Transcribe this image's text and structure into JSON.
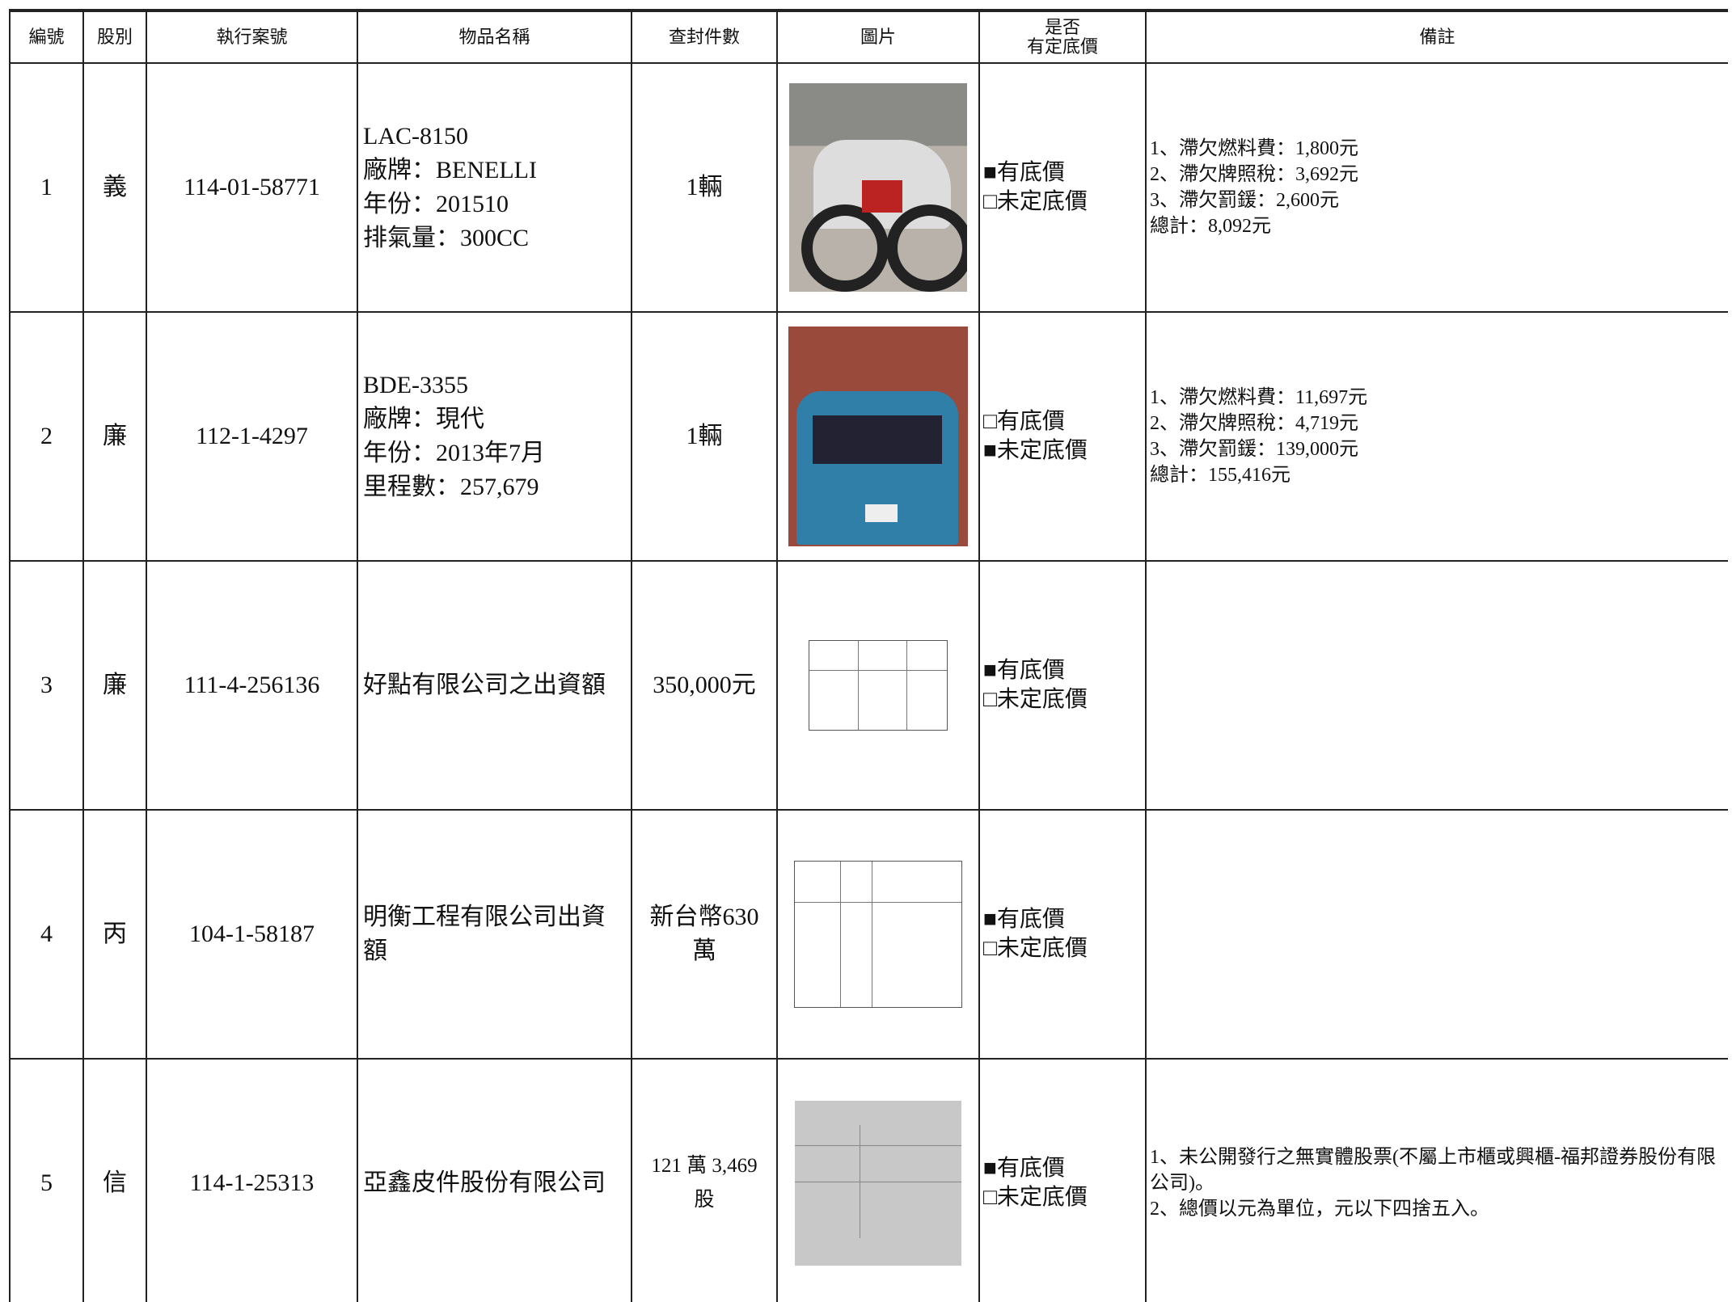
{
  "table": {
    "header": [
      "編號",
      "股別",
      "執行案號",
      "物品名稱",
      "查封件數",
      "圖片",
      [
        "是否",
        "有定底價"
      ],
      "備註"
    ],
    "rows": [
      {
        "no": "1",
        "division": "義",
        "case": "114-01-58771",
        "item": [
          "LAC-8150",
          "廠牌：BENELLI",
          "年份：201510",
          "排氣量：300CC"
        ],
        "quantity": "1輛",
        "reserve": [
          "■有底價",
          "□未定底價"
        ],
        "remarks": [
          "1、滯欠燃料費：1,800元",
          "2、滯欠牌照稅：3,692元",
          "3、滯欠罰鍰：2,600元",
          "總計：8,092元"
        ]
      },
      {
        "no": "2",
        "division": "廉",
        "case": "112-1-4297",
        "item": [
          "BDE-3355",
          "廠牌：現代",
          "年份：2013年7月",
          "里程數：257,679"
        ],
        "quantity": "1輛",
        "reserve": [
          "□有底價",
          "■未定底價"
        ],
        "remarks": [
          "1、滯欠燃料費：11,697元",
          "2、滯欠牌照稅：4,719元",
          "3、滯欠罰鍰：139,000元",
          "總計：155,416元"
        ]
      },
      {
        "no": "3",
        "division": "廉",
        "case": "111-4-256136",
        "item": [
          "好點有限公司之出資額"
        ],
        "quantity": "350,000元",
        "reserve": [
          "■有底價",
          "□未定底價"
        ],
        "remarks": []
      },
      {
        "no": "4",
        "division": "丙",
        "case": "104-1-58187",
        "item": [
          "明衡工程有限公司出資額"
        ],
        "quantity": "新台幣630萬",
        "reserve": [
          "■有底價",
          "□未定底價"
        ],
        "remarks": []
      },
      {
        "no": "5",
        "division": "信",
        "case": "114-1-25313",
        "item": [
          "亞鑫皮件股份有限公司"
        ],
        "quantity": "121 萬 3,469 股",
        "reserve": [
          "■有底價",
          "□未定底價"
        ],
        "remarks": [
          "1、未公開發行之無實體股票(不屬上市櫃或興櫃-福邦證券股份有限公司)。",
          "2、總價以元為單位，元以下四捨五入。"
        ]
      }
    ]
  }
}
